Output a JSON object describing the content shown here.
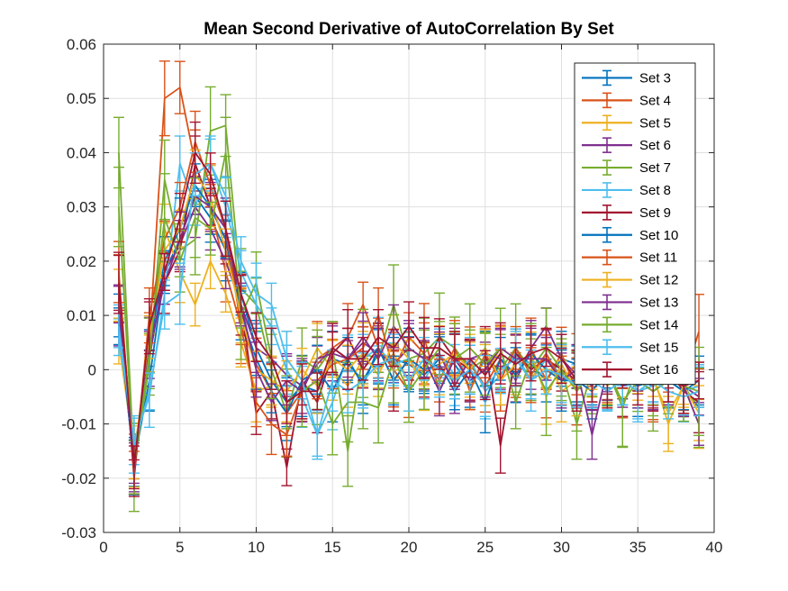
{
  "chart_data": {
    "type": "line",
    "error_bars": true,
    "title": "Mean Second Derivative of AutoCorrelation By Set",
    "xlabel": "",
    "ylabel": "",
    "xlim": [
      0,
      40
    ],
    "ylim": [
      -0.03,
      0.06
    ],
    "xticks": [
      0,
      5,
      10,
      15,
      20,
      25,
      30,
      35,
      40
    ],
    "yticks": [
      -0.03,
      -0.02,
      -0.01,
      0,
      0.01,
      0.02,
      0.03,
      0.04,
      0.05,
      0.06
    ],
    "xtick_labels": [
      "0",
      "5",
      "10",
      "15",
      "20",
      "25",
      "30",
      "35",
      "40"
    ],
    "ytick_labels": [
      "-0.03",
      "-0.02",
      "-0.01",
      "0",
      "0.01",
      "0.02",
      "0.03",
      "0.04",
      "0.05",
      "0.06"
    ],
    "grid": true,
    "legend_position": "top-right",
    "x": [
      1,
      2,
      3,
      4,
      5,
      6,
      7,
      8,
      9,
      10,
      11,
      12,
      13,
      14,
      15,
      16,
      17,
      18,
      19,
      20,
      21,
      22,
      23,
      24,
      25,
      26,
      27,
      28,
      29,
      30,
      31,
      32,
      33,
      34,
      35,
      36,
      37,
      38,
      39
    ],
    "series": [
      {
        "name": "Set 3",
        "color": "#0072BD",
        "err": 0.0045,
        "values": [
          0.008,
          -0.017,
          -0.002,
          0.018,
          0.024,
          0.032,
          0.028,
          0.022,
          0.014,
          0.004,
          -0.002,
          -0.006,
          -0.003,
          -0.004,
          0.002,
          0.001,
          -0.002,
          0.003,
          0.002,
          0.001,
          -0.001,
          0.002,
          0.001,
          -0.003,
          0.002,
          -0.001,
          0.003,
          0.001,
          -0.002,
          0.002,
          0.001,
          -0.002,
          -0.001,
          0.001,
          -0.002,
          -0.003,
          -0.002,
          -0.004,
          -0.003
        ]
      },
      {
        "name": "Set 4",
        "color": "#D95319",
        "err": 0.0055,
        "values": [
          0.015,
          -0.016,
          0.005,
          0.05,
          0.052,
          0.038,
          0.03,
          0.018,
          0.008,
          0.001,
          -0.004,
          -0.008,
          -0.004,
          0.002,
          0.004,
          0.006,
          0.012,
          0.004,
          0.0,
          -0.004,
          0.006,
          -0.004,
          0.003,
          0.001,
          -0.003,
          0.002,
          -0.001,
          0.004,
          -0.002,
          0.003,
          -0.004,
          0.001,
          0.0,
          -0.002,
          0.001,
          -0.003,
          0.0,
          -0.002,
          0.007
        ]
      },
      {
        "name": "Set 5",
        "color": "#EDB120",
        "err": 0.0045,
        "values": [
          0.005,
          -0.015,
          0.003,
          0.026,
          0.018,
          0.012,
          0.02,
          0.014,
          0.005,
          -0.004,
          -0.003,
          0.002,
          -0.002,
          0.004,
          0.0,
          -0.003,
          0.002,
          0.0,
          0.003,
          -0.002,
          0.001,
          0.003,
          -0.002,
          0.002,
          -0.001,
          0.004,
          0.002,
          -0.002,
          0.003,
          -0.004,
          -0.002,
          0.0,
          -0.003,
          0.001,
          0.0,
          -0.001,
          -0.01,
          -0.003,
          -0.01
        ]
      },
      {
        "name": "Set 6",
        "color": "#7E2F8E",
        "err": 0.0045,
        "values": [
          0.01,
          -0.017,
          0.002,
          0.018,
          0.023,
          0.03,
          0.026,
          0.02,
          0.012,
          0.004,
          0.002,
          -0.001,
          -0.003,
          0.001,
          0.004,
          0.002,
          0.005,
          0.003,
          0.001,
          0.004,
          0.002,
          0.003,
          -0.003,
          0.002,
          0.003,
          0.002,
          -0.002,
          0.004,
          0.008,
          0.002,
          -0.001,
          -0.003,
          0.001,
          -0.002,
          0.0,
          -0.001,
          -0.002,
          -0.003,
          -0.005
        ]
      },
      {
        "name": "Set 7",
        "color": "#77AC30",
        "err": 0.0065,
        "values": [
          0.04,
          -0.018,
          0.001,
          0.035,
          0.022,
          0.024,
          0.044,
          0.045,
          0.015,
          0.012,
          0.0,
          -0.008,
          0.002,
          0.0,
          0.004,
          -0.015,
          0.003,
          0.002,
          0.012,
          0.002,
          0.003,
          0.006,
          0.004,
          0.0,
          0.002,
          0.0,
          0.004,
          0.0,
          0.004,
          0.0,
          -0.01,
          0.0,
          0.0,
          -0.007,
          0.001,
          -0.002,
          0.0,
          -0.003,
          -0.007
        ]
      },
      {
        "name": "Set 8",
        "color": "#4DBEEE",
        "err": 0.0045,
        "values": [
          0.006,
          -0.013,
          -0.005,
          0.014,
          0.038,
          0.03,
          0.038,
          0.03,
          0.018,
          0.012,
          0.008,
          0.0,
          -0.005,
          -0.012,
          -0.006,
          0.003,
          0.002,
          0.004,
          0.001,
          0.002,
          -0.002,
          0.003,
          -0.001,
          0.002,
          -0.004,
          -0.001,
          0.003,
          -0.002,
          0.002,
          -0.001,
          -0.003,
          0.0,
          -0.002,
          0.001,
          -0.004,
          -0.003,
          -0.002,
          -0.004,
          -0.003
        ]
      },
      {
        "name": "Set 9",
        "color": "#A2142F",
        "err": 0.0045,
        "values": [
          0.016,
          -0.02,
          0.008,
          0.016,
          0.022,
          0.038,
          0.03,
          0.024,
          0.012,
          -0.008,
          -0.004,
          -0.018,
          -0.002,
          -0.006,
          0.003,
          0.006,
          0.0,
          0.004,
          -0.002,
          0.002,
          0.0,
          0.006,
          0.002,
          0.0,
          0.004,
          -0.014,
          0.003,
          0.0,
          0.002,
          0.0,
          -0.002,
          -0.004,
          0.0,
          -0.003,
          0.0,
          -0.002,
          0.0,
          -0.004,
          -0.006
        ]
      },
      {
        "name": "Set 10",
        "color": "#0072BD",
        "err": 0.0045,
        "values": [
          0.01,
          -0.018,
          0.004,
          0.02,
          0.026,
          0.034,
          0.03,
          0.024,
          0.01,
          0.002,
          -0.004,
          -0.008,
          -0.002,
          0.0,
          -0.004,
          0.002,
          -0.003,
          0.004,
          -0.002,
          0.002,
          0.0,
          0.001,
          -0.004,
          0.0,
          -0.006,
          0.002,
          -0.001,
          0.003,
          0.0,
          -0.002,
          -0.002,
          -0.004,
          0.0,
          -0.002,
          -0.003,
          -0.002,
          -0.002,
          -0.004,
          -0.002
        ]
      },
      {
        "name": "Set 11",
        "color": "#D95319",
        "err": 0.0045,
        "values": [
          0.018,
          -0.019,
          0.01,
          0.024,
          0.03,
          0.042,
          0.034,
          0.026,
          0.008,
          -0.006,
          -0.01,
          -0.012,
          -0.004,
          -0.002,
          0.001,
          0.002,
          0.004,
          0.01,
          0.0,
          0.006,
          0.003,
          -0.002,
          0.004,
          -0.004,
          0.003,
          -0.002,
          0.004,
          -0.001,
          0.003,
          -0.002,
          0.001,
          -0.002,
          -0.001,
          0.0,
          -0.002,
          -0.004,
          -0.002,
          -0.003,
          -0.002
        ]
      },
      {
        "name": "Set 12",
        "color": "#EDB120",
        "err": 0.0045,
        "values": [
          0.014,
          -0.016,
          0.006,
          0.022,
          0.026,
          0.036,
          0.032,
          0.022,
          0.01,
          0.0,
          -0.002,
          -0.004,
          0.0,
          -0.003,
          0.002,
          0.0,
          0.003,
          -0.001,
          0.005,
          0.002,
          -0.003,
          0.001,
          0.003,
          0.0,
          0.004,
          -0.002,
          0.001,
          0.003,
          -0.005,
          0.001,
          -0.004,
          0.002,
          -0.003,
          0.0,
          -0.001,
          -0.002,
          -0.008,
          -0.003,
          -0.008
        ]
      },
      {
        "name": "Set 13",
        "color": "#7E2F8E",
        "err": 0.0045,
        "values": [
          0.012,
          -0.018,
          0.004,
          0.016,
          0.024,
          0.032,
          0.03,
          0.026,
          0.012,
          0.0,
          -0.006,
          -0.002,
          -0.004,
          0.002,
          0.003,
          0.002,
          0.006,
          0.002,
          0.008,
          0.004,
          0.002,
          -0.004,
          0.002,
          -0.002,
          0.0,
          0.004,
          0.002,
          0.002,
          0.002,
          -0.002,
          0.0,
          -0.012,
          0.0,
          -0.003,
          -0.002,
          -0.004,
          -0.002,
          -0.003,
          -0.01
        ]
      },
      {
        "name": "Set 14",
        "color": "#77AC30",
        "err": 0.0065,
        "values": [
          0.03,
          -0.018,
          0.003,
          0.028,
          0.02,
          0.028,
          0.026,
          0.04,
          0.01,
          0.016,
          0.002,
          -0.006,
          -0.004,
          -0.002,
          -0.01,
          -0.006,
          -0.006,
          -0.007,
          0.002,
          -0.004,
          0.0,
          0.004,
          0.002,
          0.004,
          0.001,
          0.004,
          -0.006,
          0.002,
          -0.004,
          0.0,
          -0.004,
          0.0,
          0.0,
          -0.006,
          -0.002,
          -0.004,
          -0.002,
          -0.003,
          -0.004
        ]
      },
      {
        "name": "Set 15",
        "color": "#4DBEEE",
        "err": 0.0045,
        "values": [
          0.008,
          -0.014,
          -0.004,
          0.012,
          0.014,
          0.036,
          0.038,
          0.032,
          0.02,
          0.014,
          0.012,
          0.002,
          -0.002,
          -0.012,
          -0.002,
          -0.004,
          -0.002,
          0.001,
          0.002,
          -0.002,
          0.002,
          0.0,
          -0.002,
          0.0,
          -0.003,
          0.0,
          0.002,
          -0.002,
          0.0,
          -0.001,
          -0.003,
          -0.002,
          -0.004,
          -0.002,
          -0.004,
          -0.002,
          -0.004,
          -0.005,
          -0.004
        ]
      },
      {
        "name": "Set 16",
        "color": "#A2142F",
        "err": 0.0045,
        "values": [
          0.016,
          -0.018,
          0.008,
          0.018,
          0.028,
          0.04,
          0.036,
          0.026,
          0.014,
          0.006,
          0.002,
          -0.006,
          -0.004,
          -0.004,
          0.004,
          0.002,
          0.002,
          0.006,
          0.004,
          0.008,
          0.004,
          0.004,
          0.002,
          0.002,
          -0.001,
          0.003,
          0.001,
          0.003,
          0.004,
          0.002,
          -0.002,
          -0.002,
          -0.002,
          0.0,
          -0.002,
          -0.002,
          -0.002,
          -0.003,
          -0.002
        ]
      }
    ]
  }
}
